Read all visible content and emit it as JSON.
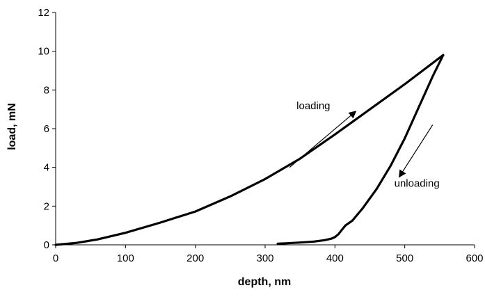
{
  "chart_data": {
    "type": "line",
    "title": "",
    "xlabel": "depth, nm",
    "ylabel": "load, mN",
    "xlim": [
      0,
      600
    ],
    "ylim": [
      0,
      12
    ],
    "x_ticks": [
      0,
      100,
      200,
      300,
      400,
      500,
      600
    ],
    "y_ticks": [
      0,
      2,
      4,
      6,
      8,
      10,
      12
    ],
    "x_tick_labels": [
      "0",
      "100",
      "200",
      "300",
      "400",
      "500",
      "600"
    ],
    "y_tick_labels": [
      "0",
      "2",
      "4",
      "6",
      "8",
      "10",
      "12"
    ],
    "grid": false,
    "legend": "none",
    "line_color": "#000000",
    "series": [
      {
        "x": [
          0,
          30,
          60,
          100,
          150,
          200,
          250,
          300,
          350,
          400,
          450,
          500,
          555
        ],
        "y": [
          0,
          0.1,
          0.28,
          0.62,
          1.15,
          1.72,
          2.5,
          3.4,
          4.45,
          5.7,
          7.0,
          8.3,
          9.8
        ]
      },
      {
        "x": [
          555,
          540,
          520,
          500,
          480,
          460,
          440,
          425,
          415,
          410,
          405,
          400,
          395,
          385,
          370,
          350,
          330,
          318
        ],
        "y": [
          9.8,
          8.7,
          7.1,
          5.5,
          4.1,
          2.9,
          1.9,
          1.25,
          1.0,
          0.78,
          0.55,
          0.4,
          0.32,
          0.24,
          0.17,
          0.12,
          0.08,
          0.06
        ]
      }
    ],
    "annotations": [
      {
        "text": "loading",
        "x": 345,
        "y": 7.0,
        "arrow_from": [
          335,
          4.0
        ],
        "arrow_to": [
          430,
          6.9
        ]
      },
      {
        "text": "unloading",
        "x": 485,
        "y": 3.0,
        "arrow_from": [
          540,
          6.2
        ],
        "arrow_to": [
          492,
          3.5
        ]
      }
    ]
  }
}
